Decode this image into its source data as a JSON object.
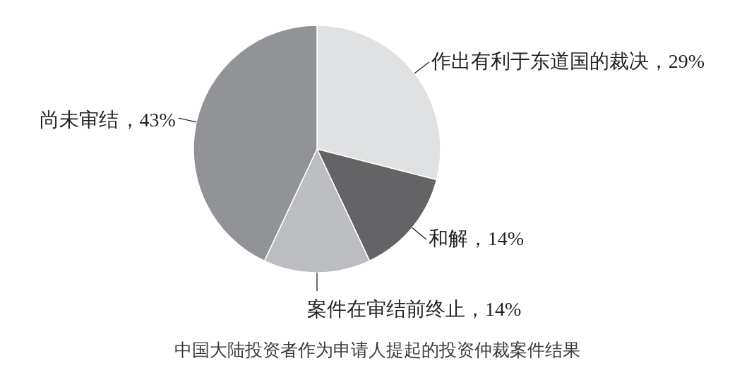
{
  "chart_data": {
    "type": "pie",
    "title": "中国大陆投资者作为申请人提起的投资仲裁案件结果",
    "categories": [
      "作出有利于东道国的裁决",
      "和解",
      "案件在审结前终止",
      "尚未审结"
    ],
    "values": [
      29,
      14,
      14,
      43
    ],
    "colors": [
      "#e0e1e3",
      "#646466",
      "#bcbdc0",
      "#929396"
    ],
    "value_labels": [
      "，29%",
      "，14%",
      "，14%",
      "，43%"
    ]
  }
}
